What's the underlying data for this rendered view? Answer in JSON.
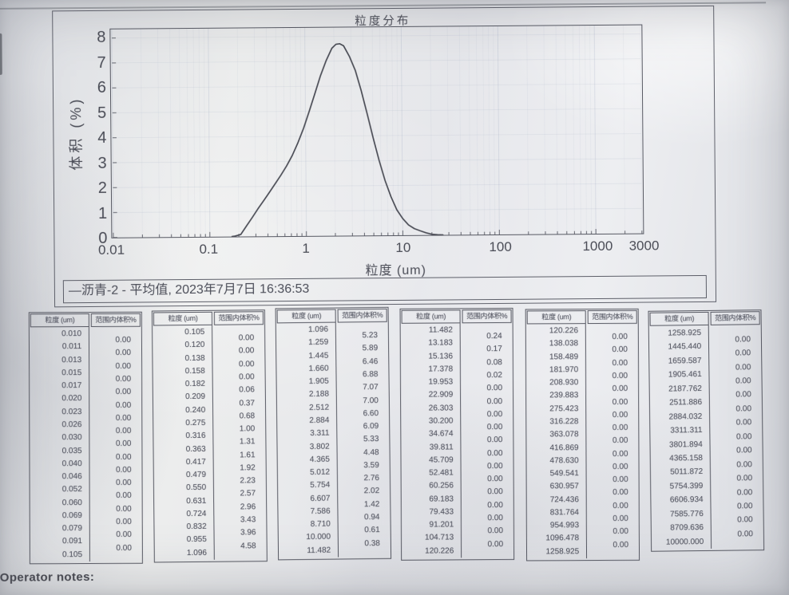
{
  "colors": {
    "ink": "#50525c",
    "paper": "#e9eaee",
    "frame": "#5a5c66"
  },
  "page": {
    "operator_notes_label": "Operator notes:"
  },
  "chart": {
    "title": "粒度分布",
    "ylabel": "体积 (%)",
    "xlabel": "粒度 (um)",
    "legend_marker": "—",
    "legend_label": "沥青-2 - 平均值, 2023年7月7日 16:36:53"
  },
  "chart_data": {
    "type": "line",
    "title": "粒度分布",
    "xlabel": "粒度 (um)",
    "ylabel": "体积 (%)",
    "x_scale": "log",
    "xlim": [
      0.01,
      3000
    ],
    "ylim": [
      0,
      8.35
    ],
    "x_ticks": [
      "0.01",
      "0.1",
      "1",
      "10",
      "100",
      "1000",
      "3000"
    ],
    "y_ticks": [
      0,
      1,
      2,
      3,
      4,
      5,
      6,
      7,
      8
    ],
    "grid": true,
    "legend_position": "bottom",
    "series": [
      {
        "name": "沥青-2 - 平均值, 2023年7月7日 16:36:53",
        "points": [
          [
            0.17,
            0.0
          ],
          [
            0.182,
            0.02
          ],
          [
            0.209,
            0.08
          ],
          [
            0.24,
            0.42
          ],
          [
            0.275,
            0.75
          ],
          [
            0.316,
            1.1
          ],
          [
            0.363,
            1.43
          ],
          [
            0.417,
            1.76
          ],
          [
            0.479,
            2.1
          ],
          [
            0.55,
            2.44
          ],
          [
            0.631,
            2.81
          ],
          [
            0.724,
            3.23
          ],
          [
            0.832,
            3.74
          ],
          [
            0.955,
            4.32
          ],
          [
            1.096,
            5.0
          ],
          [
            1.259,
            5.71
          ],
          [
            1.445,
            6.43
          ],
          [
            1.66,
            7.04
          ],
          [
            1.905,
            7.52
          ],
          [
            2.1,
            7.68
          ],
          [
            2.3,
            7.7
          ],
          [
            2.512,
            7.62
          ],
          [
            2.884,
            7.19
          ],
          [
            3.311,
            6.63
          ],
          [
            3.802,
            5.81
          ],
          [
            4.365,
            4.88
          ],
          [
            5.012,
            3.91
          ],
          [
            5.754,
            3.01
          ],
          [
            6.607,
            2.2
          ],
          [
            7.586,
            1.55
          ],
          [
            8.71,
            1.02
          ],
          [
            10.0,
            0.67
          ],
          [
            11.482,
            0.41
          ],
          [
            13.183,
            0.26
          ],
          [
            15.136,
            0.17
          ],
          [
            17.378,
            0.09
          ],
          [
            19.953,
            0.03
          ],
          [
            22.909,
            0.01
          ],
          [
            26.0,
            0.0
          ]
        ]
      }
    ]
  },
  "tables": {
    "headers": [
      "粒度 (um)",
      "范围内体积%"
    ],
    "groups": [
      {
        "sizes": [
          "0.010",
          "0.011",
          "0.013",
          "0.015",
          "0.017",
          "0.020",
          "0.023",
          "0.026",
          "0.030",
          "0.035",
          "0.040",
          "0.046",
          "0.052",
          "0.060",
          "0.069",
          "0.079",
          "0.091",
          "0.105"
        ],
        "percents": [
          "0.00",
          "0.00",
          "0.00",
          "0.00",
          "0.00",
          "0.00",
          "0.00",
          "0.00",
          "0.00",
          "0.00",
          "0.00",
          "0.00",
          "0.00",
          "0.00",
          "0.00",
          "0.00",
          "0.00"
        ]
      },
      {
        "sizes": [
          "0.105",
          "0.120",
          "0.138",
          "0.158",
          "0.182",
          "0.209",
          "0.240",
          "0.275",
          "0.316",
          "0.363",
          "0.417",
          "0.479",
          "0.550",
          "0.631",
          "0.724",
          "0.832",
          "0.955",
          "1.096"
        ],
        "percents": [
          "0.00",
          "0.00",
          "0.00",
          "0.00",
          "0.06",
          "0.37",
          "0.68",
          "1.00",
          "1.31",
          "1.61",
          "1.92",
          "2.23",
          "2.57",
          "2.96",
          "3.43",
          "3.96",
          "4.58"
        ]
      },
      {
        "sizes": [
          "1.096",
          "1.259",
          "1.445",
          "1.660",
          "1.905",
          "2.188",
          "2.512",
          "2.884",
          "3.311",
          "3.802",
          "4.365",
          "5.012",
          "5.754",
          "6.607",
          "7.586",
          "8.710",
          "10.000",
          "11.482"
        ],
        "percents": [
          "5.23",
          "5.89",
          "6.46",
          "6.88",
          "7.07",
          "7.00",
          "6.60",
          "6.09",
          "5.33",
          "4.48",
          "3.59",
          "2.76",
          "2.02",
          "1.42",
          "0.94",
          "0.61",
          "0.38"
        ]
      },
      {
        "sizes": [
          "11.482",
          "13.183",
          "15.136",
          "17.378",
          "19.953",
          "22.909",
          "26.303",
          "30.200",
          "34.674",
          "39.811",
          "45.709",
          "52.481",
          "60.256",
          "69.183",
          "79.433",
          "91.201",
          "104.713",
          "120.226"
        ],
        "percents": [
          "0.24",
          "0.17",
          "0.08",
          "0.02",
          "0.00",
          "0.00",
          "0.00",
          "0.00",
          "0.00",
          "0.00",
          "0.00",
          "0.00",
          "0.00",
          "0.00",
          "0.00",
          "0.00",
          "0.00"
        ]
      },
      {
        "sizes": [
          "120.226",
          "138.038",
          "158.489",
          "181.970",
          "208.930",
          "239.883",
          "275.423",
          "316.228",
          "363.078",
          "416.869",
          "478.630",
          "549.541",
          "630.957",
          "724.436",
          "831.764",
          "954.993",
          "1096.478",
          "1258.925"
        ],
        "percents": [
          "0.00",
          "0.00",
          "0.00",
          "0.00",
          "0.00",
          "0.00",
          "0.00",
          "0.00",
          "0.00",
          "0.00",
          "0.00",
          "0.00",
          "0.00",
          "0.00",
          "0.00",
          "0.00",
          "0.00"
        ]
      },
      {
        "sizes": [
          "1258.925",
          "1445.440",
          "1659.587",
          "1905.461",
          "2187.762",
          "2511.886",
          "2884.032",
          "3311.311",
          "3801.894",
          "4365.158",
          "5011.872",
          "5754.399",
          "6606.934",
          "7585.776",
          "8709.636",
          "10000.000"
        ],
        "percents": [
          "0.00",
          "0.00",
          "0.00",
          "0.00",
          "0.00",
          "0.00",
          "0.00",
          "0.00",
          "0.00",
          "0.00",
          "0.00",
          "0.00",
          "0.00",
          "0.00",
          "0.00"
        ]
      }
    ]
  }
}
